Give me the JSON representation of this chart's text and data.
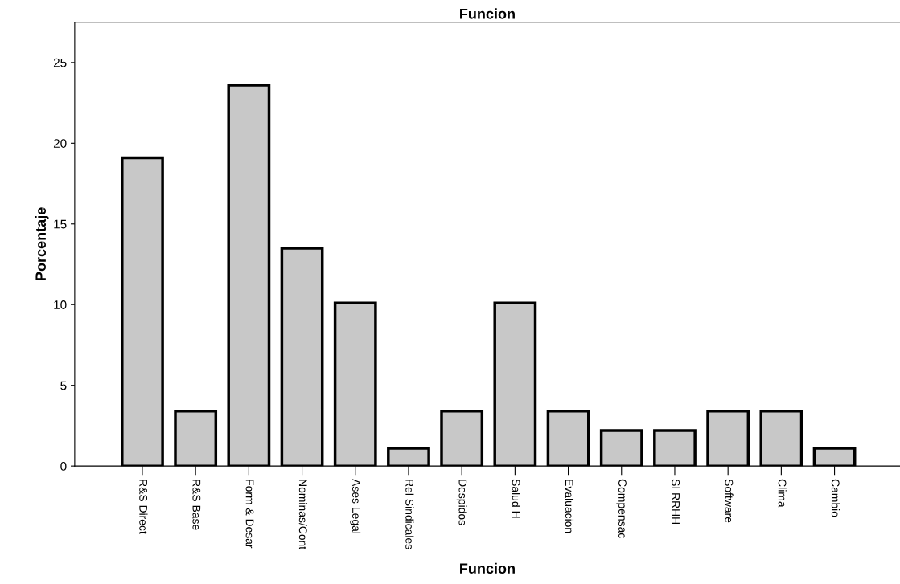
{
  "chart_data": {
    "type": "bar",
    "title": "Funcion",
    "xlabel": "Funcion",
    "ylabel": "Porcentaje",
    "categories": [
      "R&S Direct",
      "R&S Base",
      "Form & Desar",
      "Nominas/Cont",
      "Ases Legal",
      "Rel Sindicales",
      "Despidos",
      "Salud H",
      "Evaluacion",
      "Compensac",
      "SI RRHH",
      "Software",
      "Clima",
      "Cambio"
    ],
    "values": [
      19.1,
      3.4,
      23.6,
      13.5,
      10.1,
      1.1,
      3.4,
      10.1,
      3.4,
      2.2,
      2.2,
      3.4,
      3.4,
      1.1
    ],
    "color": "#c8c8c8",
    "ylim": [
      0,
      27.5
    ],
    "yticks": [
      0,
      5,
      10,
      15,
      20,
      25
    ],
    "grid": false
  }
}
